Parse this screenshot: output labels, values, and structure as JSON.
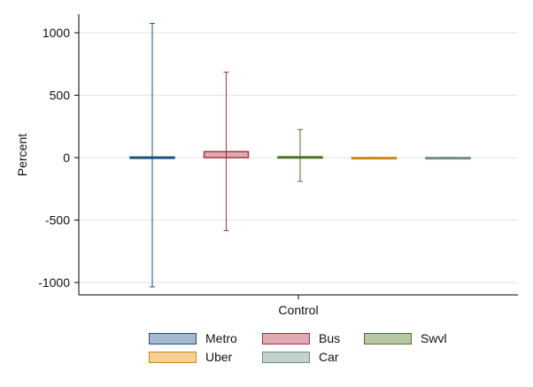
{
  "chart_data": {
    "type": "bar",
    "categories": [
      "Control"
    ],
    "ylabel": "Percent",
    "xlabel": "",
    "ylim": [
      -1100,
      1150
    ],
    "yticks": [
      1000,
      500,
      0,
      -500,
      -1000
    ],
    "grid": true,
    "legend_position": "bottom",
    "series": [
      {
        "name": "Metro",
        "value": 5,
        "ci": [
          -1035,
          1075
        ],
        "fill": "#a7b9cf",
        "stroke": "#1c4f7a"
      },
      {
        "name": "Bus",
        "value": 48,
        "ci": [
          -585,
          685
        ],
        "fill": "#dcaab0",
        "stroke": "#a33545"
      },
      {
        "name": "Swvl",
        "value": 7,
        "ci": [
          -190,
          225
        ],
        "fill": "#b8c7a3",
        "stroke": "#4d7325"
      },
      {
        "name": "Uber",
        "value": 1,
        "ci": [
          -2,
          4
        ],
        "fill": "#f6cf95",
        "stroke": "#cc8a1b"
      },
      {
        "name": "Car",
        "value": 1,
        "ci": [
          -2,
          3
        ],
        "fill": "#c4d2cc",
        "stroke": "#6f8f86"
      }
    ]
  }
}
